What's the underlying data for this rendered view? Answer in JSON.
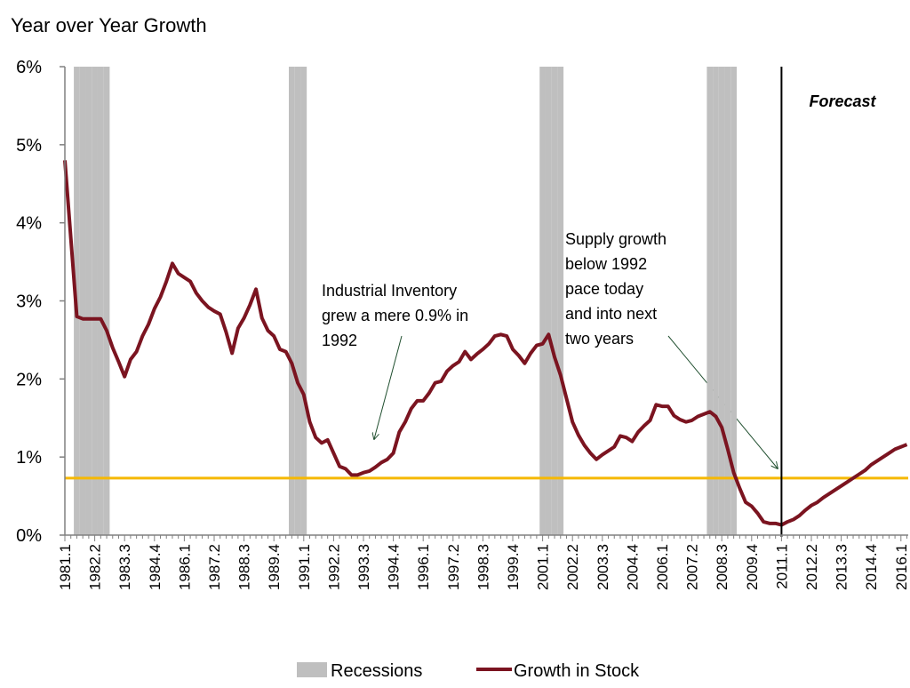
{
  "chart_data": {
    "type": "line",
    "title": "Year over Year Growth",
    "categories": [
      "1981.1",
      null,
      null,
      null,
      null,
      "1982.2",
      null,
      null,
      null,
      null,
      "1983.3",
      null,
      null,
      null,
      null,
      "1984.4",
      null,
      null,
      null,
      null,
      "1986.1",
      null,
      null,
      null,
      null,
      "1987.2",
      null,
      null,
      null,
      null,
      "1988.3",
      null,
      null,
      null,
      null,
      "1989.4",
      null,
      null,
      null,
      null,
      "1991.1",
      null,
      null,
      null,
      null,
      "1992.2",
      null,
      null,
      null,
      null,
      "1993.3",
      null,
      null,
      null,
      null,
      "1994.4",
      null,
      null,
      null,
      null,
      "1996.1",
      null,
      null,
      null,
      null,
      "1997.2",
      null,
      null,
      null,
      null,
      "1998.3",
      null,
      null,
      null,
      null,
      "1999.4",
      null,
      null,
      null,
      null,
      "2001.1",
      null,
      null,
      null,
      null,
      "2002.2",
      null,
      null,
      null,
      null,
      "2003.3",
      null,
      null,
      null,
      null,
      "2004.4",
      null,
      null,
      null,
      null,
      "2006.1",
      null,
      null,
      null,
      null,
      "2007.2",
      null,
      null,
      null,
      null,
      "2008.3",
      null,
      null,
      null,
      null,
      "2009.4",
      null,
      null,
      null,
      null,
      "2011.1",
      null,
      null,
      null,
      null,
      "2012.2",
      null,
      null,
      null,
      null,
      "2013.3",
      null,
      null,
      null,
      null,
      "2014.4",
      null,
      null,
      null,
      null,
      "2016.1",
      null
    ],
    "series": [
      {
        "name": "Recessions",
        "type": "bar",
        "color": "#bfbfbf",
        "values": [
          null,
          null,
          6,
          6,
          6,
          6,
          6,
          6,
          null,
          null,
          null,
          null,
          null,
          null,
          null,
          null,
          null,
          null,
          null,
          null,
          null,
          null,
          null,
          null,
          null,
          null,
          null,
          null,
          null,
          null,
          null,
          null,
          null,
          null,
          null,
          null,
          null,
          null,
          6,
          6,
          6,
          null,
          null,
          null,
          null,
          null,
          null,
          null,
          null,
          null,
          null,
          null,
          null,
          null,
          null,
          null,
          null,
          null,
          null,
          null,
          null,
          null,
          null,
          null,
          null,
          null,
          null,
          null,
          null,
          null,
          null,
          null,
          null,
          null,
          null,
          null,
          null,
          null,
          null,
          null,
          6,
          6,
          6,
          6,
          null,
          null,
          null,
          null,
          null,
          null,
          null,
          null,
          null,
          null,
          null,
          null,
          null,
          null,
          null,
          null,
          null,
          null,
          null,
          null,
          null,
          null,
          null,
          null,
          6,
          6,
          6,
          6,
          6,
          null,
          null,
          null,
          null,
          null,
          null,
          null,
          null,
          null,
          null,
          null,
          null,
          null,
          null,
          null,
          null,
          null,
          null,
          null,
          null,
          null,
          null,
          null,
          null,
          null,
          null,
          null,
          null,
          null
        ]
      },
      {
        "name": "Growth in Stock",
        "type": "line",
        "color": "#7b1420",
        "values": [
          4.8,
          3.8,
          2.8,
          2.77,
          2.77,
          2.77,
          2.77,
          2.62,
          2.4,
          2.22,
          2.03,
          2.25,
          2.35,
          2.55,
          2.7,
          2.9,
          3.05,
          3.25,
          3.48,
          3.35,
          3.3,
          3.25,
          3.1,
          3.0,
          2.92,
          2.87,
          2.83,
          2.6,
          2.33,
          2.65,
          2.78,
          2.95,
          3.15,
          2.78,
          2.62,
          2.55,
          2.38,
          2.35,
          2.2,
          1.95,
          1.8,
          1.45,
          1.25,
          1.18,
          1.22,
          1.05,
          0.88,
          0.85,
          0.77,
          0.77,
          0.8,
          0.82,
          0.87,
          0.93,
          0.97,
          1.05,
          1.32,
          1.45,
          1.62,
          1.72,
          1.72,
          1.82,
          1.95,
          1.97,
          2.1,
          2.17,
          2.22,
          2.35,
          2.25,
          2.32,
          2.38,
          2.45,
          2.55,
          2.57,
          2.55,
          2.38,
          2.3,
          2.2,
          2.33,
          2.43,
          2.45,
          2.57,
          2.28,
          2.05,
          1.75,
          1.45,
          1.28,
          1.15,
          1.05,
          0.97,
          1.03,
          1.08,
          1.13,
          1.27,
          1.25,
          1.2,
          1.32,
          1.4,
          1.47,
          1.67,
          1.65,
          1.65,
          1.53,
          1.48,
          1.45,
          1.47,
          1.52,
          1.55,
          1.58,
          1.52,
          1.38,
          1.1,
          0.8,
          0.6,
          0.42,
          0.37,
          0.28,
          0.17,
          0.15,
          0.15,
          0.13,
          0.17,
          0.2,
          0.25,
          0.32,
          0.38,
          0.42,
          0.48,
          0.53,
          0.58,
          0.63,
          0.68,
          0.73,
          0.78,
          0.83,
          0.9,
          0.95,
          1.0,
          1.05,
          1.1,
          1.13,
          1.16
        ]
      }
    ],
    "ylim": [
      0,
      6
    ],
    "yticks": [
      {
        "value": 0,
        "label": "0%"
      },
      {
        "value": 1,
        "label": "1%"
      },
      {
        "value": 2,
        "label": "2%"
      },
      {
        "value": 3,
        "label": "3%"
      },
      {
        "value": 4,
        "label": "4%"
      },
      {
        "value": 5,
        "label": "5%"
      },
      {
        "value": 6,
        "label": "6%"
      }
    ],
    "reference_line": {
      "value": 0.73,
      "color": "#f5b800"
    },
    "forecast": {
      "label": "Forecast",
      "x": "2011.1"
    },
    "annotations": [
      {
        "lines": [
          "Industrial Inventory",
          "grew a mere 0.9% in",
          "1992"
        ]
      },
      {
        "lines": [
          "Supply growth",
          "below 1992",
          "pace today",
          "and into next",
          "two years"
        ]
      }
    ],
    "legend": "bottom"
  }
}
